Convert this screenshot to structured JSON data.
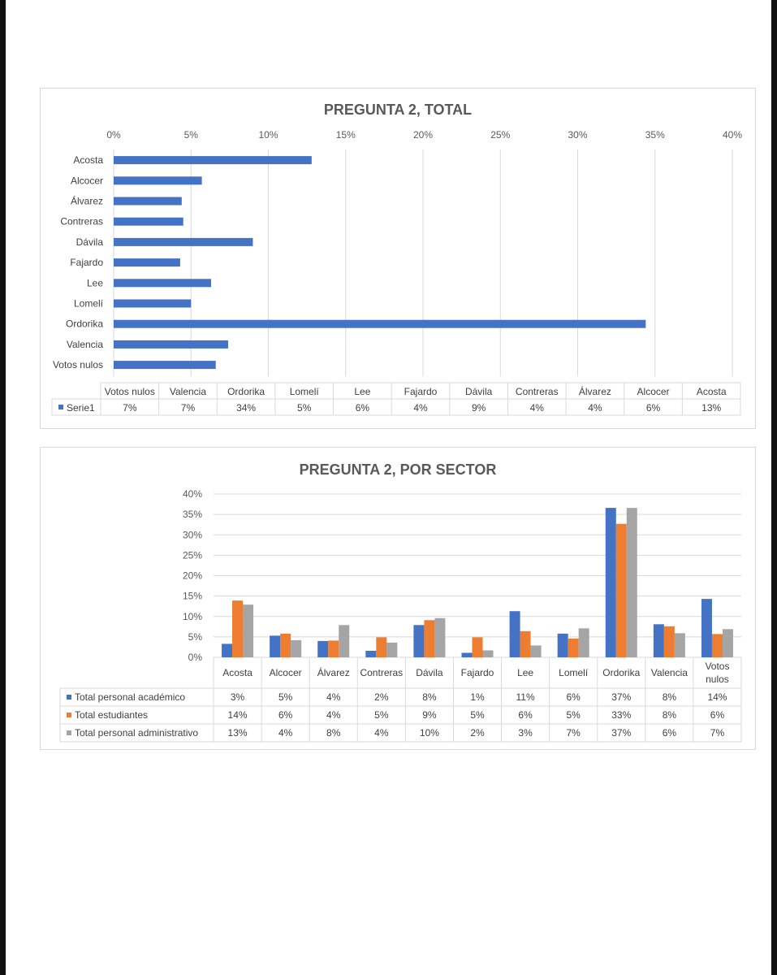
{
  "charts": [
    {
      "type": "bar",
      "orientation": "horizontal",
      "title": "PREGUNTA 2, TOTAL",
      "categories": [
        "Votos nulos",
        "Valencia",
        "Ordorika",
        "Lomelí",
        "Lee",
        "Fajardo",
        "Dávila",
        "Contreras",
        "Álvarez",
        "Alcocer",
        "Acosta"
      ],
      "series": [
        {
          "name": "Serie1",
          "color": "#4472C4",
          "values": [
            6.6,
            7.4,
            34.4,
            5.0,
            6.3,
            4.3,
            9.0,
            4.5,
            4.4,
            5.7,
            12.8
          ],
          "labels": [
            "7%",
            "7%",
            "34%",
            "5%",
            "6%",
            "4%",
            "9%",
            "4%",
            "4%",
            "6%",
            "13%"
          ]
        }
      ],
      "xlim": [
        0,
        40
      ],
      "ticks": [
        "0%",
        "5%",
        "10%",
        "15%",
        "20%",
        "25%",
        "30%",
        "35%",
        "40%"
      ],
      "grid": true,
      "axis_position": "top",
      "data_table": true
    },
    {
      "type": "bar",
      "orientation": "vertical",
      "title": "PREGUNTA 2, POR SECTOR",
      "categories": [
        "Acosta",
        "Alcocer",
        "Álvarez",
        "Contreras",
        "Dávila",
        "Fajardo",
        "Lee",
        "Lomelí",
        "Ordorika",
        "Valencia",
        "Votos nulos"
      ],
      "series": [
        {
          "name": "Total personal académico",
          "color": "#4472C4",
          "values": [
            3.3,
            5.3,
            4.0,
            1.6,
            7.9,
            1.1,
            11.3,
            5.8,
            36.6,
            8.1,
            14.3
          ],
          "labels": [
            "3%",
            "5%",
            "4%",
            "2%",
            "8%",
            "1%",
            "11%",
            "6%",
            "37%",
            "8%",
            "14%"
          ]
        },
        {
          "name": "Total estudiantes",
          "color": "#ED7D31",
          "values": [
            13.9,
            5.8,
            4.1,
            4.9,
            9.1,
            4.9,
            6.4,
            4.6,
            32.7,
            7.6,
            5.7
          ],
          "labels": [
            "14%",
            "6%",
            "4%",
            "5%",
            "9%",
            "5%",
            "6%",
            "5%",
            "33%",
            "8%",
            "6%"
          ]
        },
        {
          "name": "Total personal administrativo",
          "color": "#A5A5A5",
          "values": [
            12.9,
            4.2,
            7.9,
            3.6,
            9.6,
            1.7,
            2.9,
            7.1,
            36.6,
            5.9,
            6.9
          ],
          "labels": [
            "13%",
            "4%",
            "8%",
            "4%",
            "10%",
            "2%",
            "3%",
            "7%",
            "37%",
            "6%",
            "7%"
          ]
        }
      ],
      "ylim": [
        0,
        40
      ],
      "ticks": [
        "0%",
        "5%",
        "10%",
        "15%",
        "20%",
        "25%",
        "30%",
        "35%",
        "40%"
      ],
      "grid": true,
      "data_table": true
    }
  ],
  "chart_data": [
    {
      "type": "bar",
      "title": "PREGUNTA 2, TOTAL",
      "categories": [
        "Votos nulos",
        "Valencia",
        "Ordorika",
        "Lomelí",
        "Lee",
        "Fajardo",
        "Dávila",
        "Contreras",
        "Álvarez",
        "Alcocer",
        "Acosta"
      ],
      "series": [
        {
          "name": "Serie1",
          "values": [
            6.6,
            7.4,
            34.4,
            5.0,
            6.3,
            4.3,
            9.0,
            4.5,
            4.4,
            5.7,
            12.8
          ]
        }
      ],
      "xlim": [
        0,
        40
      ]
    },
    {
      "type": "bar",
      "title": "PREGUNTA 2, POR SECTOR",
      "categories": [
        "Acosta",
        "Alcocer",
        "Álvarez",
        "Contreras",
        "Dávila",
        "Fajardo",
        "Lee",
        "Lomelí",
        "Ordorika",
        "Valencia",
        "Votos nulos"
      ],
      "series": [
        {
          "name": "Total personal académico",
          "values": [
            3.3,
            5.3,
            4.0,
            1.6,
            7.9,
            1.1,
            11.3,
            5.8,
            36.6,
            8.1,
            14.3
          ]
        },
        {
          "name": "Total estudiantes",
          "values": [
            13.9,
            5.8,
            4.1,
            4.9,
            9.1,
            4.9,
            6.4,
            4.6,
            32.7,
            7.6,
            5.7
          ]
        },
        {
          "name": "Total personal administrativo",
          "values": [
            12.9,
            4.2,
            7.9,
            3.6,
            9.6,
            1.7,
            2.9,
            7.1,
            36.6,
            5.9,
            6.9
          ]
        }
      ],
      "ylim": [
        0,
        40
      ]
    }
  ],
  "colors": {
    "grid": "#d9d9d9",
    "text": "#595959",
    "title": "#595959",
    "border": "#d9d9d9"
  }
}
